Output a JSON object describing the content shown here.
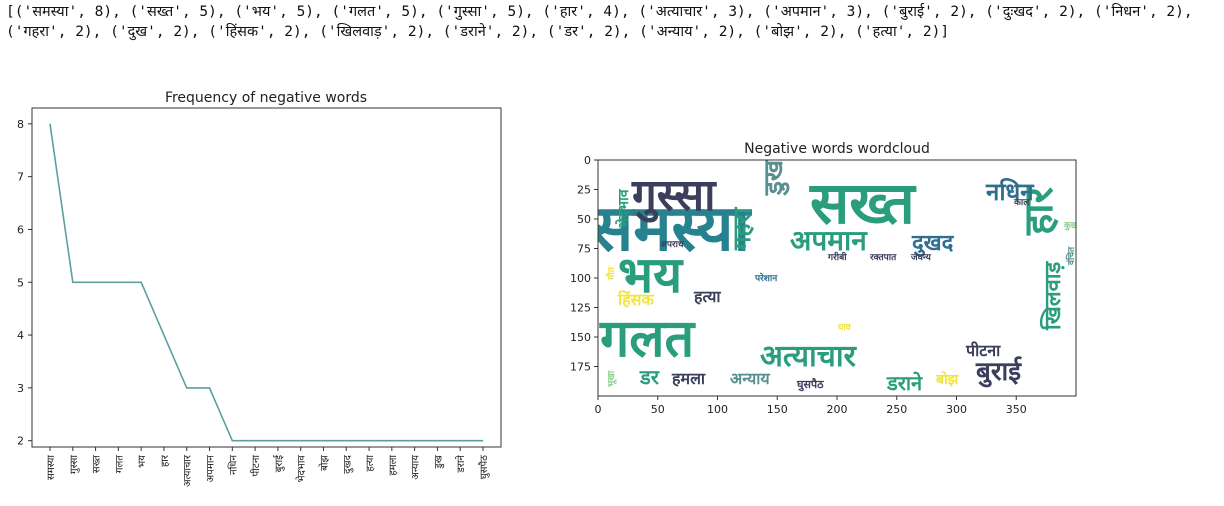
{
  "output_text": "[('समस्या', 8), ('सख्त', 5), ('भय', 5), ('गलत', 5), ('गुस्सा', 5), ('हार', 4), ('अत्याचार', 3), ('अपमान', 3), ('बुराई', 2), ('दुःखद', 2), ('निधन', 2), ('गहरा', 2), ('दुख', 2), ('हिंसक', 2), ('खिलवाड़', 2), ('डराने', 2), ('डर', 2), ('अन्याय', 2), ('बोझ', 2), ('हत्या', 2)]",
  "chart_data": [
    {
      "type": "line",
      "title": "Frequency of negative words",
      "categories": [
        "समस्या",
        "गुस्सा",
        "सख्त",
        "गलत",
        "भय",
        "हार",
        "अत्याचार",
        "अपमान",
        "नधिन",
        "पीटना",
        "बुराई",
        "भेदभाव",
        "बोझ",
        "दुखद",
        "हत्या",
        "हमला",
        "अन्याय",
        "डुख",
        "डराने",
        "घुसपैठ"
      ],
      "values": [
        8,
        5,
        5,
        5,
        5,
        4,
        3,
        3,
        2,
        2,
        2,
        2,
        2,
        2,
        2,
        2,
        2,
        2,
        2,
        2
      ],
      "yticks": [
        2,
        3,
        4,
        5,
        6,
        7,
        8
      ],
      "ylim": [
        1.88,
        8.3
      ],
      "line_color": "#5f9ea0",
      "grid": false
    },
    {
      "type": "wordcloud",
      "title": "Negative words wordcloud",
      "xticks": [
        0,
        50,
        100,
        150,
        200,
        250,
        300,
        350
      ],
      "yticks": [
        0,
        25,
        50,
        75,
        100,
        125,
        150,
        175
      ],
      "xlim": [
        0,
        400
      ],
      "ylim": [
        0,
        200
      ],
      "words": [
        {
          "text": "समस्या",
          "size": 64,
          "color": "#26828e",
          "orient": "h"
        },
        {
          "text": "सख्त",
          "size": 58,
          "color": "#2a9d7c",
          "orient": "h"
        },
        {
          "text": "गलत",
          "size": 52,
          "color": "#2a9d7c",
          "orient": "h"
        },
        {
          "text": "भय",
          "size": 50,
          "color": "#2a9d7c",
          "orient": "h"
        },
        {
          "text": "गुस्सा",
          "size": 44,
          "color": "#3b3f5c",
          "orient": "h"
        },
        {
          "text": "हार",
          "size": 40,
          "color": "#2a9d7c",
          "orient": "v"
        },
        {
          "text": "अत्याचार",
          "size": 30,
          "color": "#2a9d7c",
          "orient": "h"
        },
        {
          "text": "अपमान",
          "size": 28,
          "color": "#2a9d7c",
          "orient": "h"
        },
        {
          "text": "नधिन",
          "size": 24,
          "color": "#2e6e8e",
          "orient": "h"
        },
        {
          "text": "दुखद",
          "size": 22,
          "color": "#2e6e8e",
          "orient": "h"
        },
        {
          "text": "बुराई",
          "size": 26,
          "color": "#3b3f5c",
          "orient": "h"
        },
        {
          "text": "गहरा",
          "size": 24,
          "color": "#2a9d7c",
          "orient": "v"
        },
        {
          "text": "खिलवाड़",
          "size": 22,
          "color": "#2a9d7c",
          "orient": "v"
        },
        {
          "text": "डराने",
          "size": 20,
          "color": "#2a9d7c",
          "orient": "h"
        },
        {
          "text": "डर",
          "size": 20,
          "color": "#2a9d7c",
          "orient": "h"
        },
        {
          "text": "हमला",
          "size": 16,
          "color": "#3b3f5c",
          "orient": "h"
        },
        {
          "text": "अन्याय",
          "size": 16,
          "color": "#5a8f8f",
          "orient": "h"
        },
        {
          "text": "हत्या",
          "size": 16,
          "color": "#3b3f5c",
          "orient": "h"
        },
        {
          "text": "हिंसक",
          "size": 16,
          "color": "#f0e442",
          "orient": "h"
        },
        {
          "text": "पीटना",
          "size": 16,
          "color": "#3b3f5c",
          "orient": "h"
        },
        {
          "text": "भेदभाव",
          "size": 14,
          "color": "#2a9d7c",
          "orient": "v"
        },
        {
          "text": "बोझ",
          "size": 14,
          "color": "#f0e442",
          "orient": "h"
        },
        {
          "text": "घुसपैठ",
          "size": 11,
          "color": "#3b3f5c",
          "orient": "h"
        },
        {
          "text": "अपराध",
          "size": 9,
          "color": "#3b3f5c",
          "orient": "h"
        },
        {
          "text": "परेशान",
          "size": 9,
          "color": "#2e6e8e",
          "orient": "h"
        },
        {
          "text": "गरीबी",
          "size": 9,
          "color": "#3b3f5c",
          "orient": "h"
        },
        {
          "text": "रक्तपात",
          "size": 9,
          "color": "#3b3f5c",
          "orient": "h"
        },
        {
          "text": "जघन्य",
          "size": 9,
          "color": "#3b3f5c",
          "orient": "h"
        },
        {
          "text": "काल",
          "size": 9,
          "color": "#3b3f5c",
          "orient": "h"
        },
        {
          "text": "डुख",
          "size": 26,
          "color": "#5a8f8f",
          "orient": "v"
        },
        {
          "text": "कुछ",
          "size": 9,
          "color": "#8ccf8c",
          "orient": "h"
        },
        {
          "text": "वंचित",
          "size": 9,
          "color": "#5a8f8f",
          "orient": "v"
        },
        {
          "text": "मौत",
          "size": 9,
          "color": "#f0e442",
          "orient": "v"
        },
        {
          "text": "भूखा",
          "size": 9,
          "color": "#8ccf8c",
          "orient": "v"
        },
        {
          "text": "घाव",
          "size": 9,
          "color": "#f0e442",
          "orient": "h"
        }
      ]
    }
  ]
}
